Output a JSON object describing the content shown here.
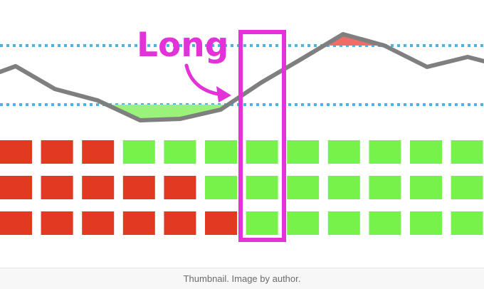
{
  "figure": {
    "annotation_label": "Long",
    "colors": {
      "line": "#7f7f7f",
      "dotted_lines": "#4ab4e6",
      "below_fill": "#9bf27a",
      "above_fill": "#f06c66",
      "bear_cell": "#e23a22",
      "bull_cell": "#77f24b",
      "highlight": "#e232d8"
    },
    "grid": {
      "rows": [
        {
          "states": [
            "red",
            "red",
            "red",
            "green",
            "green",
            "green",
            "green",
            "green",
            "green",
            "green",
            "green",
            "green"
          ]
        },
        {
          "states": [
            "red",
            "red",
            "red",
            "red",
            "red",
            "green",
            "green",
            "green",
            "green",
            "green",
            "green",
            "green"
          ]
        },
        {
          "states": [
            "red",
            "red",
            "red",
            "red",
            "red",
            "red",
            "green",
            "green",
            "green",
            "green",
            "green",
            "green"
          ]
        }
      ],
      "highlighted_column": 6
    }
  },
  "caption": {
    "text": "Thumbnail. Image by author."
  }
}
